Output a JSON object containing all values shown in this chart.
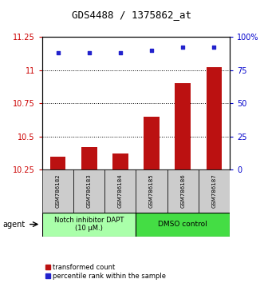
{
  "title": "GDS4488 / 1375862_at",
  "categories": [
    "GSM786182",
    "GSM786183",
    "GSM786184",
    "GSM786185",
    "GSM786186",
    "GSM786187"
  ],
  "bar_values": [
    10.35,
    10.42,
    10.37,
    10.65,
    10.9,
    11.02
  ],
  "scatter_values": [
    88,
    88,
    88,
    90,
    92,
    92
  ],
  "ylim_left": [
    10.25,
    11.25
  ],
  "ylim_right": [
    0,
    100
  ],
  "yticks_left": [
    10.25,
    10.5,
    10.75,
    11.0,
    11.25
  ],
  "yticks_right": [
    0,
    25,
    50,
    75,
    100
  ],
  "ytick_labels_left": [
    "10.25",
    "10.5",
    "10.75",
    "11",
    "11.25"
  ],
  "ytick_labels_right": [
    "0",
    "25",
    "50",
    "75",
    "100%"
  ],
  "bar_color": "#bb1111",
  "scatter_color": "#2222cc",
  "group1_label": "Notch inhibitor DAPT\n(10 μM.)",
  "group2_label": "DMSO control",
  "group1_color": "#aaffaa",
  "group2_color": "#44dd44",
  "agent_label": "agent",
  "legend_bar_label": "transformed count",
  "legend_scatter_label": "percentile rank within the sample",
  "bar_bottom": 10.25,
  "left_color": "#cc0000",
  "right_color": "#0000cc",
  "title_fontsize": 9,
  "tick_fontsize": 7,
  "cat_fontsize": 5,
  "group_fontsize": 6,
  "legend_fontsize": 6
}
